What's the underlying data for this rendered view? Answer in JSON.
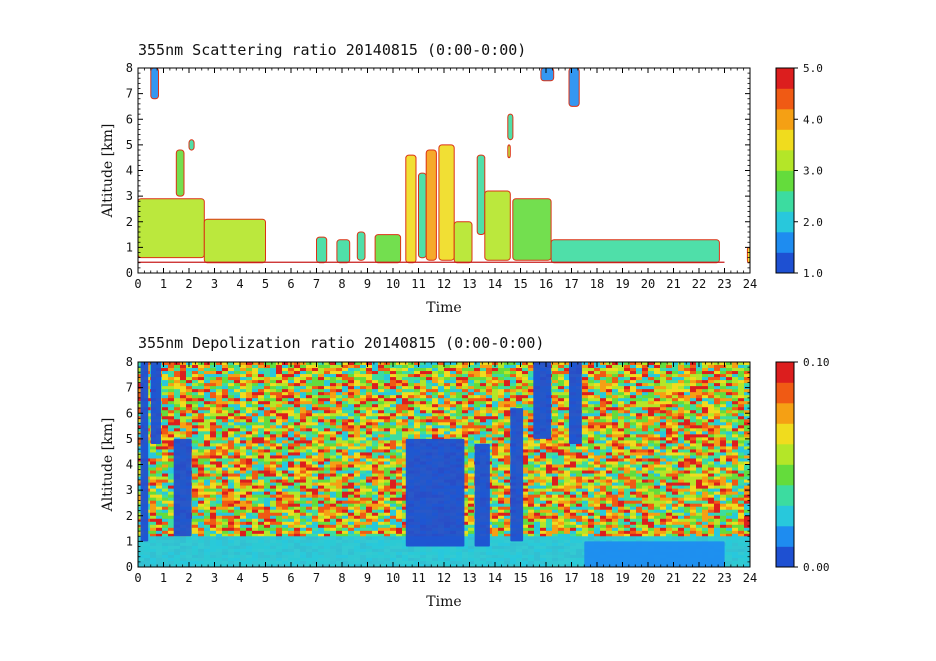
{
  "chart_data": [
    {
      "type": "heatmap",
      "title": "355nm Scattering ratio  20140815 (0:00-0:00)",
      "xlabel": "Time",
      "ylabel": "Altitude [km]",
      "xlim": [
        0,
        24
      ],
      "ylim": [
        0,
        8
      ],
      "x_ticks": [
        "0",
        "1",
        "2",
        "3",
        "4",
        "5",
        "6",
        "7",
        "8",
        "9",
        "10",
        "11",
        "12",
        "13",
        "14",
        "15",
        "16",
        "17",
        "18",
        "19",
        "20",
        "21",
        "22",
        "23",
        "24"
      ],
      "y_ticks": [
        "0",
        "1",
        "2",
        "3",
        "4",
        "5",
        "6",
        "7",
        "8"
      ],
      "colorbar": {
        "min": 1.0,
        "max": 5.0,
        "labels": [
          "1.0",
          "2.0",
          "3.0",
          "4.0",
          "5.0"
        ]
      },
      "colors": [
        "#1e50d2",
        "#1e8cf0",
        "#28c8dc",
        "#3cdca0",
        "#64dc3c",
        "#b4e628",
        "#f0dc1e",
        "#f5a014",
        "#f05a14",
        "#dc1e1e"
      ],
      "features": [
        {
          "t0": 0.0,
          "t1": 2.6,
          "z0": 0.6,
          "z1": 2.9,
          "value": 3.2
        },
        {
          "t0": 0.5,
          "t1": 0.8,
          "z0": 6.8,
          "z1": 8.0,
          "value": 1.5
        },
        {
          "t0": 1.5,
          "t1": 1.8,
          "z0": 3.0,
          "z1": 4.8,
          "value": 2.8
        },
        {
          "t0": 2.0,
          "t1": 2.2,
          "z0": 4.8,
          "z1": 5.2,
          "value": 2.5
        },
        {
          "t0": 2.6,
          "t1": 5.0,
          "z0": 0.4,
          "z1": 2.1,
          "value": 3.0
        },
        {
          "t0": 7.0,
          "t1": 7.4,
          "z0": 0.4,
          "z1": 1.4,
          "value": 2.5
        },
        {
          "t0": 7.8,
          "t1": 8.3,
          "z0": 0.4,
          "z1": 1.3,
          "value": 2.5
        },
        {
          "t0": 8.6,
          "t1": 8.9,
          "z0": 0.5,
          "z1": 1.6,
          "value": 2.4
        },
        {
          "t0": 9.3,
          "t1": 10.3,
          "z0": 0.4,
          "z1": 1.5,
          "value": 2.8
        },
        {
          "t0": 10.5,
          "t1": 10.9,
          "z0": 0.4,
          "z1": 4.6,
          "value": 3.5
        },
        {
          "t0": 11.0,
          "t1": 11.3,
          "z0": 0.6,
          "z1": 3.9,
          "value": 2.5
        },
        {
          "t0": 11.3,
          "t1": 11.7,
          "z0": 0.5,
          "z1": 4.8,
          "value": 3.8
        },
        {
          "t0": 11.8,
          "t1": 12.4,
          "z0": 0.5,
          "z1": 5.0,
          "value": 3.4
        },
        {
          "t0": 12.4,
          "t1": 13.1,
          "z0": 0.4,
          "z1": 2.0,
          "value": 3.0
        },
        {
          "t0": 13.3,
          "t1": 13.6,
          "z0": 1.5,
          "z1": 4.6,
          "value": 2.2
        },
        {
          "t0": 13.6,
          "t1": 14.6,
          "z0": 0.5,
          "z1": 3.2,
          "value": 3.2
        },
        {
          "t0": 14.5,
          "t1": 14.7,
          "z0": 5.2,
          "z1": 6.2,
          "value": 2.3
        },
        {
          "t0": 14.5,
          "t1": 14.6,
          "z0": 4.5,
          "z1": 5.0,
          "value": 3.0
        },
        {
          "t0": 14.7,
          "t1": 16.2,
          "z0": 0.5,
          "z1": 2.9,
          "value": 2.8
        },
        {
          "t0": 15.8,
          "t1": 16.3,
          "z0": 7.5,
          "z1": 8.0,
          "value": 1.6
        },
        {
          "t0": 16.9,
          "t1": 17.3,
          "z0": 6.5,
          "z1": 8.0,
          "value": 1.7
        },
        {
          "t0": 16.2,
          "t1": 22.8,
          "z0": 0.4,
          "z1": 1.3,
          "value": 2.3
        },
        {
          "t0": 23.9,
          "t1": 24.0,
          "z0": 0.4,
          "z1": 1.0,
          "value": 3.5
        }
      ]
    },
    {
      "type": "heatmap",
      "title": "355nm Depolization ratio  20140815 (0:00-0:00)",
      "xlabel": "Time",
      "ylabel": "Altitude [km]",
      "xlim": [
        0,
        24
      ],
      "ylim": [
        0,
        8
      ],
      "x_ticks": [
        "0",
        "1",
        "2",
        "3",
        "4",
        "5",
        "6",
        "7",
        "8",
        "9",
        "10",
        "11",
        "12",
        "13",
        "14",
        "15",
        "16",
        "17",
        "18",
        "19",
        "20",
        "21",
        "22",
        "23",
        "24"
      ],
      "y_ticks": [
        "0",
        "1",
        "2",
        "3",
        "4",
        "5",
        "6",
        "7",
        "8"
      ],
      "colorbar": {
        "min": 0.0,
        "max": 0.1,
        "labels": [
          "0.00",
          "0.10"
        ]
      },
      "colors": [
        "#1e50d2",
        "#1e8cf0",
        "#28c8dc",
        "#3cdca0",
        "#64dc3c",
        "#b4e628",
        "#f0dc1e",
        "#f5a014",
        "#f05a14",
        "#dc1e1e"
      ],
      "background": "noisy high depolarization above ~1.5 km (values ~0.05-0.10)",
      "features": [
        {
          "t0": 0.0,
          "t1": 24.0,
          "z0": 0.0,
          "z1": 1.2,
          "value": 0.025
        },
        {
          "t0": 0.1,
          "t1": 0.4,
          "z0": 1.0,
          "z1": 8.0,
          "value": 0.01
        },
        {
          "t0": 0.5,
          "t1": 0.9,
          "z0": 4.8,
          "z1": 8.0,
          "value": 0.01
        },
        {
          "t0": 1.4,
          "t1": 2.1,
          "z0": 1.2,
          "z1": 5.0,
          "value": 0.01
        },
        {
          "t0": 10.5,
          "t1": 12.8,
          "z0": 0.8,
          "z1": 5.0,
          "value": 0.01
        },
        {
          "t0": 13.2,
          "t1": 13.8,
          "z0": 0.8,
          "z1": 4.8,
          "value": 0.01
        },
        {
          "t0": 14.6,
          "t1": 15.1,
          "z0": 1.0,
          "z1": 6.2,
          "value": 0.01
        },
        {
          "t0": 15.5,
          "t1": 16.2,
          "z0": 5.0,
          "z1": 8.0,
          "value": 0.01
        },
        {
          "t0": 16.9,
          "t1": 17.4,
          "z0": 4.8,
          "z1": 8.0,
          "value": 0.01
        },
        {
          "t0": 17.5,
          "t1": 23.0,
          "z0": 0.0,
          "z1": 1.0,
          "value": 0.02
        }
      ]
    }
  ]
}
